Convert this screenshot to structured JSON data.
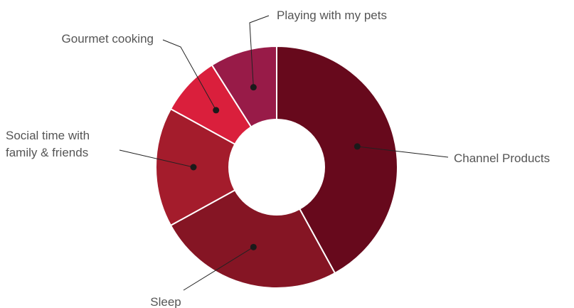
{
  "chart_data": {
    "type": "pie",
    "donut": true,
    "title": "",
    "start_angle_deg": 0,
    "direction": "clockwise",
    "slices": [
      {
        "label": "Channel Products",
        "label_lines": [
          "Channel Products"
        ],
        "value": 42,
        "color": "#67091c"
      },
      {
        "label": "Sleep",
        "label_lines": [
          "Sleep"
        ],
        "value": 25,
        "color": "#851524"
      },
      {
        "label": "Social time with family & friends",
        "label_lines": [
          "Social time with",
          "family & friends"
        ],
        "value": 16,
        "color": "#a41c2c"
      },
      {
        "label": "Gourmet cooking",
        "label_lines": [
          "Gourmet cooking"
        ],
        "value": 8,
        "color": "#da1f3c"
      },
      {
        "label": "Playing with my pets",
        "label_lines": [
          "Playing with my pets"
        ],
        "value": 9,
        "color": "#981b48"
      }
    ]
  }
}
